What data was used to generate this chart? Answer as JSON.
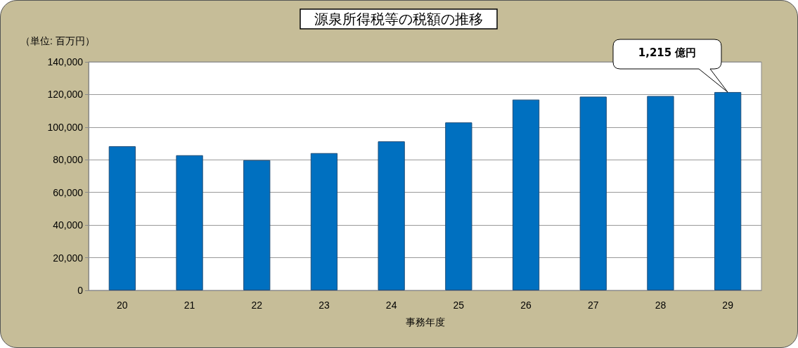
{
  "chart_data": {
    "type": "bar",
    "title": "源泉所得税等の税額の推移",
    "ylabel": "（単位: 百万円）",
    "xlabel": "事務年度",
    "categories": [
      "20",
      "21",
      "22",
      "23",
      "24",
      "25",
      "26",
      "27",
      "28",
      "29"
    ],
    "values": [
      88300,
      82800,
      79800,
      84100,
      91300,
      102900,
      116900,
      118700,
      119100,
      121500
    ],
    "color": "#0070c0",
    "ylim": [
      0,
      140000
    ],
    "yticks": [
      0,
      {
        "value": 20000,
        "label": "20,000"
      },
      {
        "value": 40000,
        "label": "40,000"
      },
      {
        "value": 60000,
        "label": "60,000"
      },
      {
        "value": 80000,
        "label": "80,000"
      },
      {
        "value": 100000,
        "label": "100,000"
      },
      {
        "value": 120000,
        "label": "120,000"
      },
      {
        "value": 140000,
        "label": "140,000"
      }
    ],
    "grid": "y",
    "annotations": [
      "1,215 億円"
    ]
  }
}
